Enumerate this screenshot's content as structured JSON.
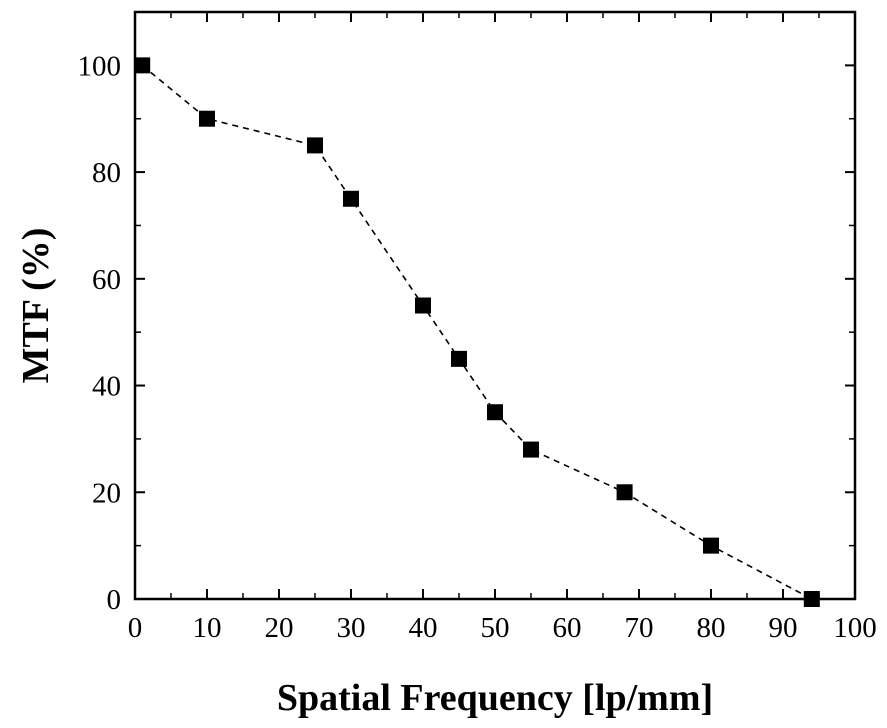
{
  "chart_data": {
    "type": "scatter",
    "title": "",
    "xlabel": "Spatial Frequency [lp/mm]",
    "ylabel": "MTF (%)",
    "xlim": [
      0,
      100
    ],
    "ylim": [
      0,
      110
    ],
    "x_ticks": [
      0,
      10,
      20,
      30,
      40,
      50,
      60,
      70,
      80,
      90,
      100
    ],
    "y_ticks": [
      0,
      20,
      40,
      60,
      80,
      100
    ],
    "grid": false,
    "legend": "none",
    "marker": "filled-square",
    "line_style": "dashed",
    "colors": {
      "marker": "#000000",
      "line": "#000000"
    },
    "series": [
      {
        "x": [
          1,
          10,
          25,
          30,
          40,
          45,
          50,
          55,
          68,
          80,
          94
        ],
        "y": [
          100,
          90,
          85,
          75,
          55,
          45,
          35,
          28,
          20,
          10,
          0
        ]
      }
    ]
  }
}
